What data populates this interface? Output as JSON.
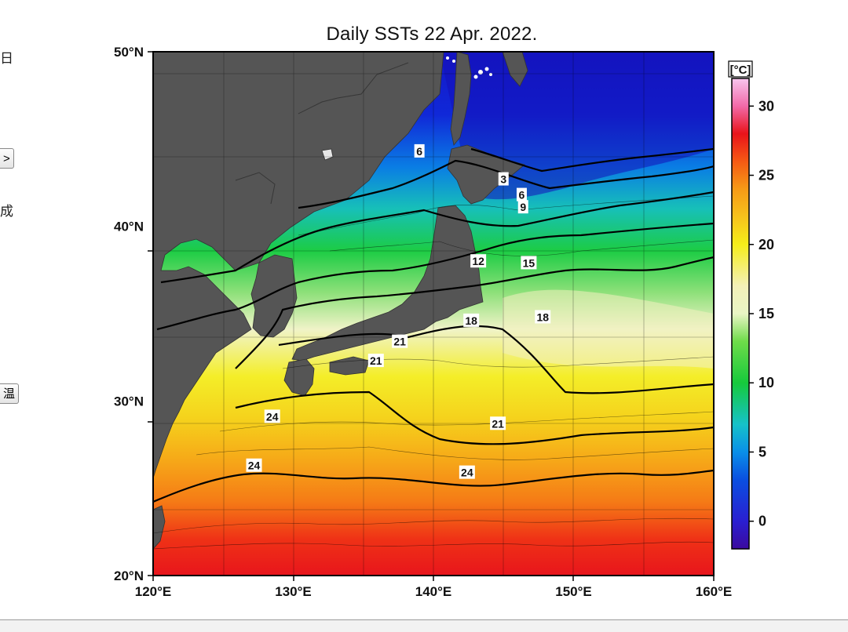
{
  "page": {
    "side_labels": [
      "日",
      "成"
    ],
    "side_buttons": [
      ">",
      "温"
    ]
  },
  "map": {
    "title": "Daily SSTs 22 Apr. 2022.",
    "lat_labels": [
      "50°N",
      "40°N",
      "30°N",
      "20°N"
    ],
    "lon_labels": [
      "120°E",
      "130°E",
      "140°E",
      "150°E",
      "160°E"
    ],
    "extent": {
      "lon_min": 120,
      "lon_max": 160,
      "lat_min": 20,
      "lat_max": 50
    },
    "colorbar": {
      "unit": "[°C]",
      "ticks": [
        "0",
        "5",
        "10",
        "15",
        "20",
        "25",
        "30"
      ],
      "range": [
        -2,
        32
      ],
      "stops": [
        {
          "v": -2,
          "c": "#3b0a9e"
        },
        {
          "v": 0,
          "c": "#2a1fd1"
        },
        {
          "v": 3,
          "c": "#0a4fe0"
        },
        {
          "v": 5,
          "c": "#0a8fe8"
        },
        {
          "v": 7,
          "c": "#16c2c9"
        },
        {
          "v": 10,
          "c": "#16c93c"
        },
        {
          "v": 13,
          "c": "#6fdc4a"
        },
        {
          "v": 15,
          "c": "#e9f5c5"
        },
        {
          "v": 17,
          "c": "#f3f0b8"
        },
        {
          "v": 20,
          "c": "#f5ee1a"
        },
        {
          "v": 22,
          "c": "#f6c21c"
        },
        {
          "v": 24,
          "c": "#f69a16"
        },
        {
          "v": 26,
          "c": "#f55a14"
        },
        {
          "v": 28,
          "c": "#e8131a"
        },
        {
          "v": 30,
          "c": "#f26aa8"
        },
        {
          "v": 32,
          "c": "#f8c6ef"
        }
      ]
    },
    "isotherm_labels": [
      {
        "text": "6",
        "lon": 139.0,
        "lat": 44.3
      },
      {
        "text": "3",
        "lon": 145.0,
        "lat": 42.7
      },
      {
        "text": "6",
        "lon": 146.3,
        "lat": 41.8
      },
      {
        "text": "9",
        "lon": 146.4,
        "lat": 41.1
      },
      {
        "text": "12",
        "lon": 143.2,
        "lat": 38.0
      },
      {
        "text": "15",
        "lon": 146.8,
        "lat": 37.9
      },
      {
        "text": "18",
        "lon": 142.7,
        "lat": 34.6
      },
      {
        "text": "18",
        "lon": 147.8,
        "lat": 34.8
      },
      {
        "text": "21",
        "lon": 137.6,
        "lat": 33.4
      },
      {
        "text": "21",
        "lon": 135.9,
        "lat": 32.3
      },
      {
        "text": "24",
        "lon": 128.5,
        "lat": 29.1
      },
      {
        "text": "21",
        "lon": 144.6,
        "lat": 28.7
      },
      {
        "text": "24",
        "lon": 127.2,
        "lat": 26.3
      },
      {
        "text": "24",
        "lon": 142.4,
        "lat": 25.9
      }
    ]
  }
}
